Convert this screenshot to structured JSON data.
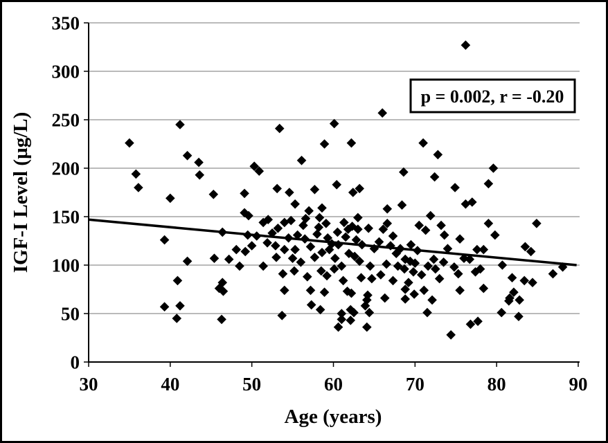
{
  "chart_data": {
    "type": "scatter",
    "title": "",
    "xlabel": "Age (years)",
    "ylabel": "IGF-I Level (µg/L)",
    "annotation": "p = 0.002, r = -0.20",
    "xlim": [
      30,
      90
    ],
    "ylim": [
      0,
      350
    ],
    "x_ticks": [
      30,
      40,
      50,
      60,
      70,
      80,
      90
    ],
    "y_ticks": [
      0,
      50,
      100,
      150,
      200,
      250,
      300,
      350
    ],
    "grid": "horizontal",
    "legend": "none",
    "marker": "filled-diamond",
    "colors": {
      "foreground": "#000000",
      "background": "#ffffff",
      "gridline": "#909090"
    },
    "trendline": {
      "x": [
        30,
        89.8
      ],
      "y": [
        147,
        100
      ]
    },
    "points": [
      [
        76.2,
        327
      ],
      [
        66,
        257
      ],
      [
        60.1,
        246
      ],
      [
        41.2,
        245
      ],
      [
        53.4,
        241
      ],
      [
        35,
        226
      ],
      [
        58.9,
        225
      ],
      [
        62.2,
        226
      ],
      [
        71,
        226
      ],
      [
        42.1,
        213
      ],
      [
        72.8,
        214
      ],
      [
        56.1,
        208
      ],
      [
        43.5,
        206
      ],
      [
        50.3,
        202
      ],
      [
        50.9,
        197
      ],
      [
        79.6,
        200
      ],
      [
        35.8,
        194
      ],
      [
        43.6,
        193
      ],
      [
        68.6,
        196
      ],
      [
        72.4,
        191
      ],
      [
        36.1,
        180
      ],
      [
        40,
        169
      ],
      [
        45.3,
        173
      ],
      [
        49.1,
        174
      ],
      [
        53.1,
        179
      ],
      [
        54.6,
        175
      ],
      [
        55.3,
        163
      ],
      [
        57.7,
        178
      ],
      [
        60.4,
        183
      ],
      [
        62.4,
        175
      ],
      [
        63.2,
        179
      ],
      [
        79,
        184
      ],
      [
        74.9,
        180
      ],
      [
        76.2,
        163
      ],
      [
        77,
        165
      ],
      [
        68.4,
        162
      ],
      [
        66.6,
        158
      ],
      [
        57,
        156
      ],
      [
        58.6,
        159
      ],
      [
        49.1,
        154
      ],
      [
        49.6,
        151
      ],
      [
        61.3,
        144
      ],
      [
        63,
        149
      ],
      [
        66.6,
        143
      ],
      [
        71.9,
        151
      ],
      [
        73.2,
        141
      ],
      [
        79,
        143
      ],
      [
        84.9,
        143
      ],
      [
        70.5,
        141
      ],
      [
        64.3,
        138
      ],
      [
        63,
        137
      ],
      [
        56.6,
        148
      ],
      [
        58.3,
        149
      ],
      [
        51.4,
        144
      ],
      [
        54,
        144
      ],
      [
        54.8,
        146
      ],
      [
        59.1,
        143
      ],
      [
        56.3,
        141
      ],
      [
        58.2,
        139
      ],
      [
        52,
        147
      ],
      [
        46.4,
        134
      ],
      [
        49.5,
        131
      ],
      [
        50.6,
        130
      ],
      [
        39.3,
        126
      ],
      [
        67.3,
        130
      ],
      [
        71.3,
        136
      ],
      [
        73.6,
        131
      ],
      [
        79.8,
        131
      ],
      [
        62.8,
        126
      ],
      [
        75.5,
        127
      ],
      [
        51.9,
        123
      ],
      [
        52.9,
        120
      ],
      [
        57.2,
        119
      ],
      [
        60.6,
        121
      ],
      [
        83.5,
        119
      ],
      [
        55.6,
        131
      ],
      [
        56.5,
        127
      ],
      [
        58,
        132
      ],
      [
        59.3,
        128
      ],
      [
        60.5,
        134
      ],
      [
        61.5,
        129
      ],
      [
        62.3,
        140
      ],
      [
        53.2,
        138
      ],
      [
        54.5,
        128
      ],
      [
        61.8,
        137
      ],
      [
        66.1,
        137
      ],
      [
        65.6,
        124
      ],
      [
        63.5,
        121
      ],
      [
        67,
        120
      ],
      [
        52.5,
        133
      ],
      [
        50,
        120
      ],
      [
        69.5,
        121
      ],
      [
        68.2,
        117
      ],
      [
        70.3,
        115
      ],
      [
        74,
        117
      ],
      [
        65,
        117
      ],
      [
        59.8,
        122
      ],
      [
        59.5,
        116
      ],
      [
        48.1,
        116
      ],
      [
        49.2,
        114
      ],
      [
        54,
        116
      ],
      [
        55.3,
        116
      ],
      [
        77.6,
        116
      ],
      [
        78.4,
        116
      ],
      [
        84.2,
        114
      ],
      [
        45.4,
        107
      ],
      [
        42.1,
        104
      ],
      [
        47.2,
        106
      ],
      [
        61.9,
        112
      ],
      [
        62.6,
        109
      ],
      [
        67.7,
        112
      ],
      [
        68.8,
        106
      ],
      [
        69.4,
        104
      ],
      [
        70,
        102
      ],
      [
        76,
        107
      ],
      [
        76.7,
        106
      ],
      [
        80.7,
        100
      ],
      [
        88.1,
        98
      ],
      [
        71.6,
        99
      ],
      [
        61,
        99
      ],
      [
        48.5,
        99
      ],
      [
        51.4,
        99
      ],
      [
        58.6,
        113
      ],
      [
        57.7,
        108
      ],
      [
        60.2,
        107
      ],
      [
        55,
        107
      ],
      [
        56,
        103
      ],
      [
        53,
        108
      ],
      [
        66.5,
        101
      ],
      [
        64.5,
        99
      ],
      [
        63.2,
        104
      ],
      [
        67.9,
        99
      ],
      [
        72.3,
        106
      ],
      [
        73.5,
        103
      ],
      [
        74.8,
        98
      ],
      [
        60.1,
        96
      ],
      [
        68.7,
        96
      ],
      [
        72.5,
        96
      ],
      [
        78,
        96
      ],
      [
        46.4,
        82
      ],
      [
        40.9,
        84
      ],
      [
        69.8,
        93
      ],
      [
        77.4,
        93
      ],
      [
        75.3,
        91
      ],
      [
        86.9,
        91
      ],
      [
        63.4,
        87
      ],
      [
        64.7,
        86
      ],
      [
        67.3,
        84
      ],
      [
        81.9,
        87
      ],
      [
        83.4,
        84
      ],
      [
        84.4,
        82
      ],
      [
        58.5,
        94
      ],
      [
        59.2,
        89
      ],
      [
        61.2,
        84
      ],
      [
        56.8,
        88
      ],
      [
        55.2,
        94
      ],
      [
        53.8,
        91
      ],
      [
        65.8,
        90
      ],
      [
        70.8,
        90
      ],
      [
        73,
        86
      ],
      [
        69.2,
        82
      ],
      [
        46,
        76
      ],
      [
        46.5,
        73
      ],
      [
        68.8,
        75
      ],
      [
        71.1,
        74
      ],
      [
        61.7,
        73
      ],
      [
        62.2,
        71
      ],
      [
        75.5,
        74
      ],
      [
        78.4,
        76
      ],
      [
        82.1,
        72
      ],
      [
        81.6,
        66
      ],
      [
        81.5,
        63
      ],
      [
        82.8,
        64
      ],
      [
        66.3,
        66
      ],
      [
        68.8,
        65
      ],
      [
        69.9,
        70
      ],
      [
        54,
        74
      ],
      [
        57.2,
        74
      ],
      [
        58.9,
        72
      ],
      [
        64.1,
        64
      ],
      [
        72.1,
        64
      ],
      [
        64.2,
        69
      ],
      [
        57.3,
        59
      ],
      [
        58.4,
        54
      ],
      [
        39.3,
        57
      ],
      [
        41.2,
        58
      ],
      [
        63.9,
        58
      ],
      [
        64.4,
        51
      ],
      [
        40.8,
        45
      ],
      [
        46.3,
        44
      ],
      [
        53.7,
        48
      ],
      [
        61,
        50
      ],
      [
        62.1,
        54
      ],
      [
        62.5,
        51
      ],
      [
        71.5,
        51
      ],
      [
        80.6,
        51
      ],
      [
        82.7,
        47
      ],
      [
        61,
        44
      ],
      [
        62.1,
        43
      ],
      [
        64.1,
        36
      ],
      [
        60.6,
        36
      ],
      [
        74.4,
        28
      ],
      [
        76.8,
        39
      ],
      [
        77.7,
        42
      ]
    ]
  }
}
